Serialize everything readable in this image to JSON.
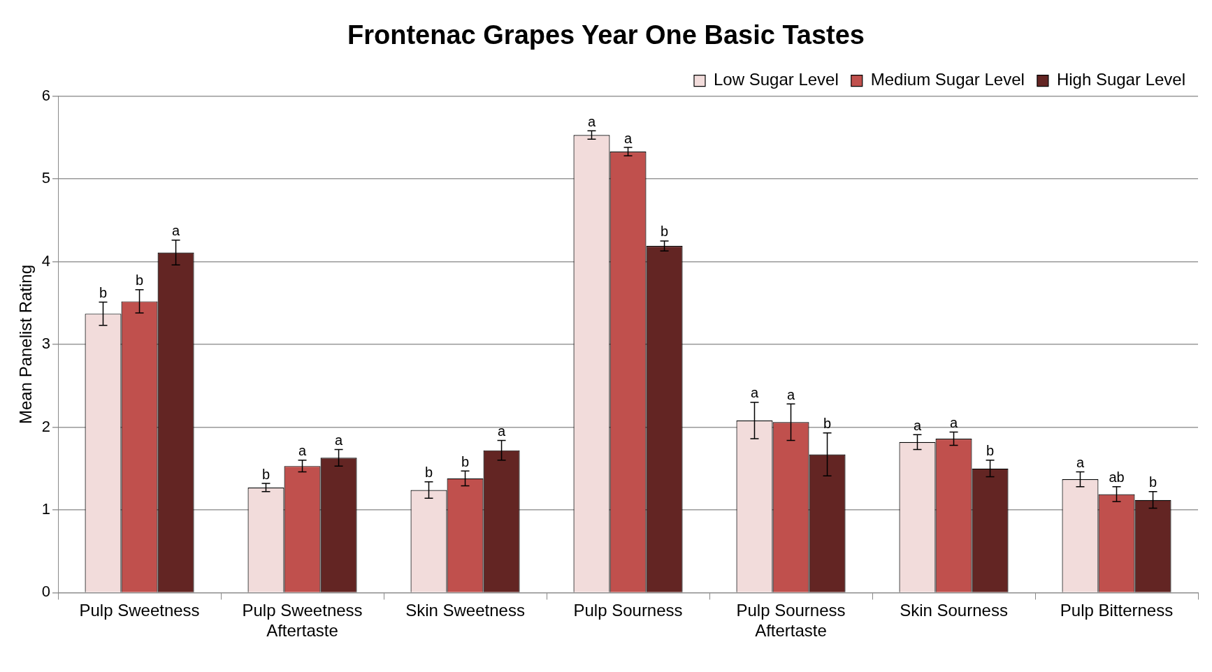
{
  "chart_data": {
    "type": "bar",
    "title": "Frontenac Grapes Year One Basic Tastes",
    "ylabel": "Mean Panelist Rating",
    "categories": [
      "Pulp Sweetness",
      "Pulp Sweetness Aftertaste",
      "Skin Sweetness",
      "Pulp Sourness",
      "Pulp Sourness Aftertaste",
      "Skin Sourness",
      "Pulp Bitterness"
    ],
    "series": [
      {
        "name": "Low Sugar Level",
        "color": "#f2dcdb",
        "values": [
          3.37,
          1.27,
          1.24,
          5.53,
          2.08,
          1.82,
          1.37
        ],
        "errors": [
          0.14,
          0.05,
          0.1,
          0.05,
          0.22,
          0.09,
          0.09
        ],
        "value_labels": [
          "b",
          "b",
          "b",
          "a",
          "a",
          "a",
          "a"
        ]
      },
      {
        "name": "Medium Sugar Level",
        "color": "#c0504d",
        "values": [
          3.52,
          1.53,
          1.38,
          5.33,
          2.06,
          1.86,
          1.19
        ],
        "errors": [
          0.14,
          0.07,
          0.09,
          0.05,
          0.22,
          0.08,
          0.09
        ],
        "value_labels": [
          "b",
          "a",
          "b",
          "a",
          "a",
          "a",
          "ab"
        ]
      },
      {
        "name": "High Sugar Level",
        "color": "#632523",
        "values": [
          4.11,
          1.63,
          1.72,
          4.19,
          1.67,
          1.5,
          1.12
        ],
        "errors": [
          0.15,
          0.1,
          0.12,
          0.06,
          0.26,
          0.1,
          0.1
        ],
        "value_labels": [
          "a",
          "a",
          "a",
          "b",
          "b",
          "b",
          "b"
        ]
      }
    ],
    "ylim": [
      0,
      6
    ],
    "yticks": [
      0,
      1,
      2,
      3,
      4,
      5,
      6
    ],
    "grid": "y",
    "legend": "top right"
  }
}
